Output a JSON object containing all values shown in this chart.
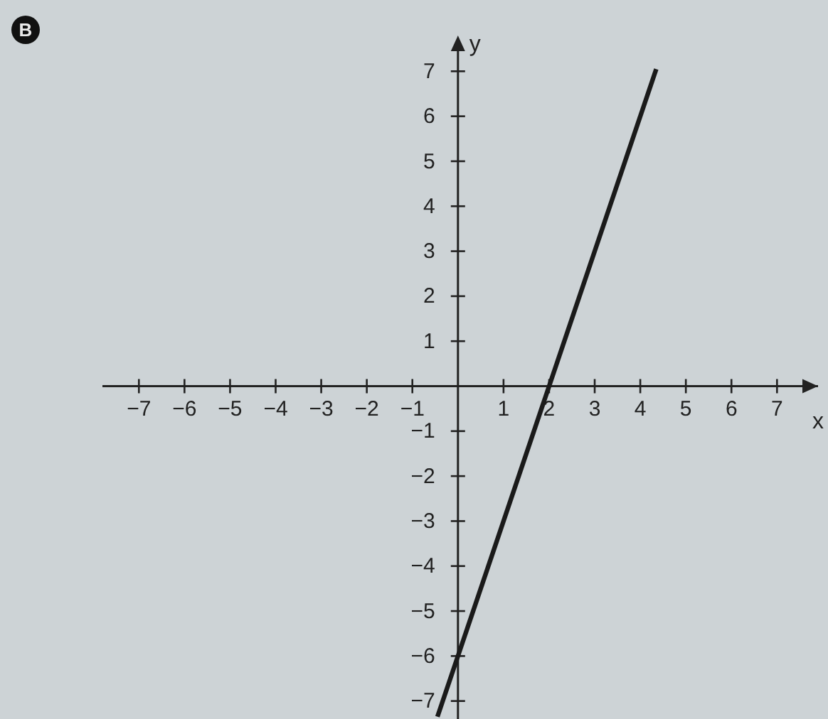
{
  "chart_data": {
    "type": "line",
    "xlabel": "x",
    "ylabel": "y",
    "annotations": [
      "B"
    ],
    "x": [
      -0.45,
      4.35
    ],
    "values": [
      -7.35,
      7.05
    ],
    "color": "#1a1a1a",
    "xlim": [
      -7.8,
      7.9
    ],
    "ylim": [
      -7.4,
      7.7
    ],
    "xticks": [
      {
        "value": -7,
        "label": "−7"
      },
      {
        "value": -6,
        "label": "−6"
      },
      {
        "value": -5,
        "label": "−5"
      },
      {
        "value": -4,
        "label": "−4"
      },
      {
        "value": -3,
        "label": "−3"
      },
      {
        "value": -2,
        "label": "−2"
      },
      {
        "value": -1,
        "label": "−1"
      },
      1,
      2,
      3,
      4,
      5,
      6,
      7
    ],
    "yticks": [
      {
        "value": -7,
        "label": "−7"
      },
      {
        "value": -6,
        "label": "−6"
      },
      {
        "value": -5,
        "label": "−5"
      },
      {
        "value": -4,
        "label": "−4"
      },
      {
        "value": -3,
        "label": "−3"
      },
      {
        "value": -2,
        "label": "−2"
      },
      {
        "value": -1,
        "label": "−1"
      },
      1,
      2,
      3,
      4,
      5,
      6,
      7
    ]
  }
}
